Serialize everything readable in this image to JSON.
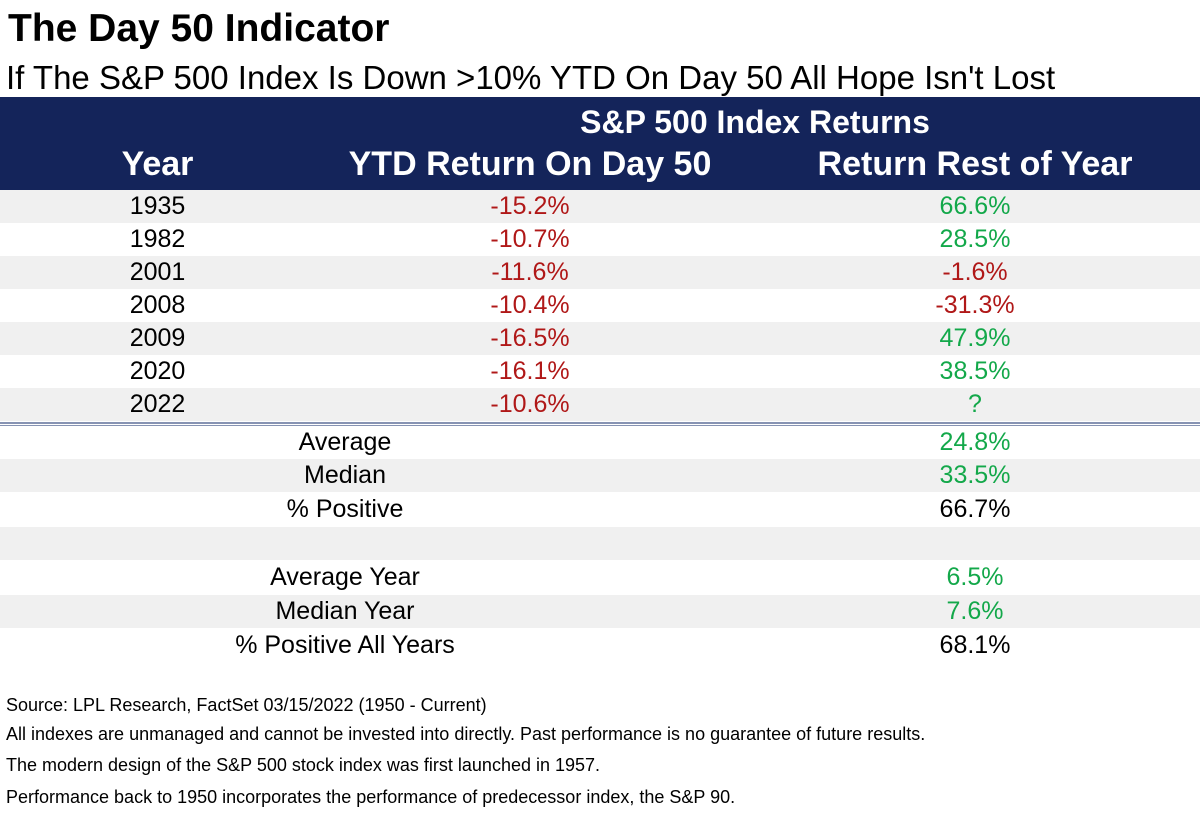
{
  "title": "The Day 50 Indicator",
  "subtitle": "If The S&P 500 Index Is Down >10% YTD On Day 50 All Hope Isn't Lost",
  "table": {
    "group_header": "S&P 500 Index Returns",
    "columns": [
      "Year",
      "YTD Return On Day 50",
      "Return Rest of Year"
    ],
    "rows": [
      {
        "year": "1935",
        "ytd": "-15.2%",
        "rest": "66.6%"
      },
      {
        "year": "1982",
        "ytd": "-10.7%",
        "rest": "28.5%"
      },
      {
        "year": "2001",
        "ytd": "-11.6%",
        "rest": "-1.6%"
      },
      {
        "year": "2008",
        "ytd": "-10.4%",
        "rest": "-31.3%"
      },
      {
        "year": "2009",
        "ytd": "-16.5%",
        "rest": "47.9%"
      },
      {
        "year": "2020",
        "ytd": "-16.1%",
        "rest": "38.5%"
      },
      {
        "year": "2022",
        "ytd": "-10.6%",
        "rest": "?"
      }
    ],
    "summary": [
      {
        "label": "Average",
        "value": "24.8%"
      },
      {
        "label": "Median",
        "value": "33.5%"
      },
      {
        "label": "% Positive",
        "value": "66.7%"
      }
    ],
    "summary_all": [
      {
        "label": "Average Year",
        "value": "6.5%"
      },
      {
        "label": "Median Year",
        "value": "7.6%"
      },
      {
        "label": "% Positive All Years",
        "value": "68.1%"
      }
    ]
  },
  "footnotes": [
    "Source: LPL Research, FactSet 03/15/2022 (1950 - Current)",
    "All indexes are unmanaged and cannot be invested into directly. Past performance is no guarantee of future results.",
    "The modern design of the S&P 500 stock index was first launched in 1957.",
    "Performance back to 1950 incorporates the performance of predecessor index, the S&P 90."
  ],
  "colors": {
    "header_bg": "#14245a",
    "negative": "#b01818",
    "positive": "#13a84a",
    "stripe": "#f0f0f0"
  }
}
